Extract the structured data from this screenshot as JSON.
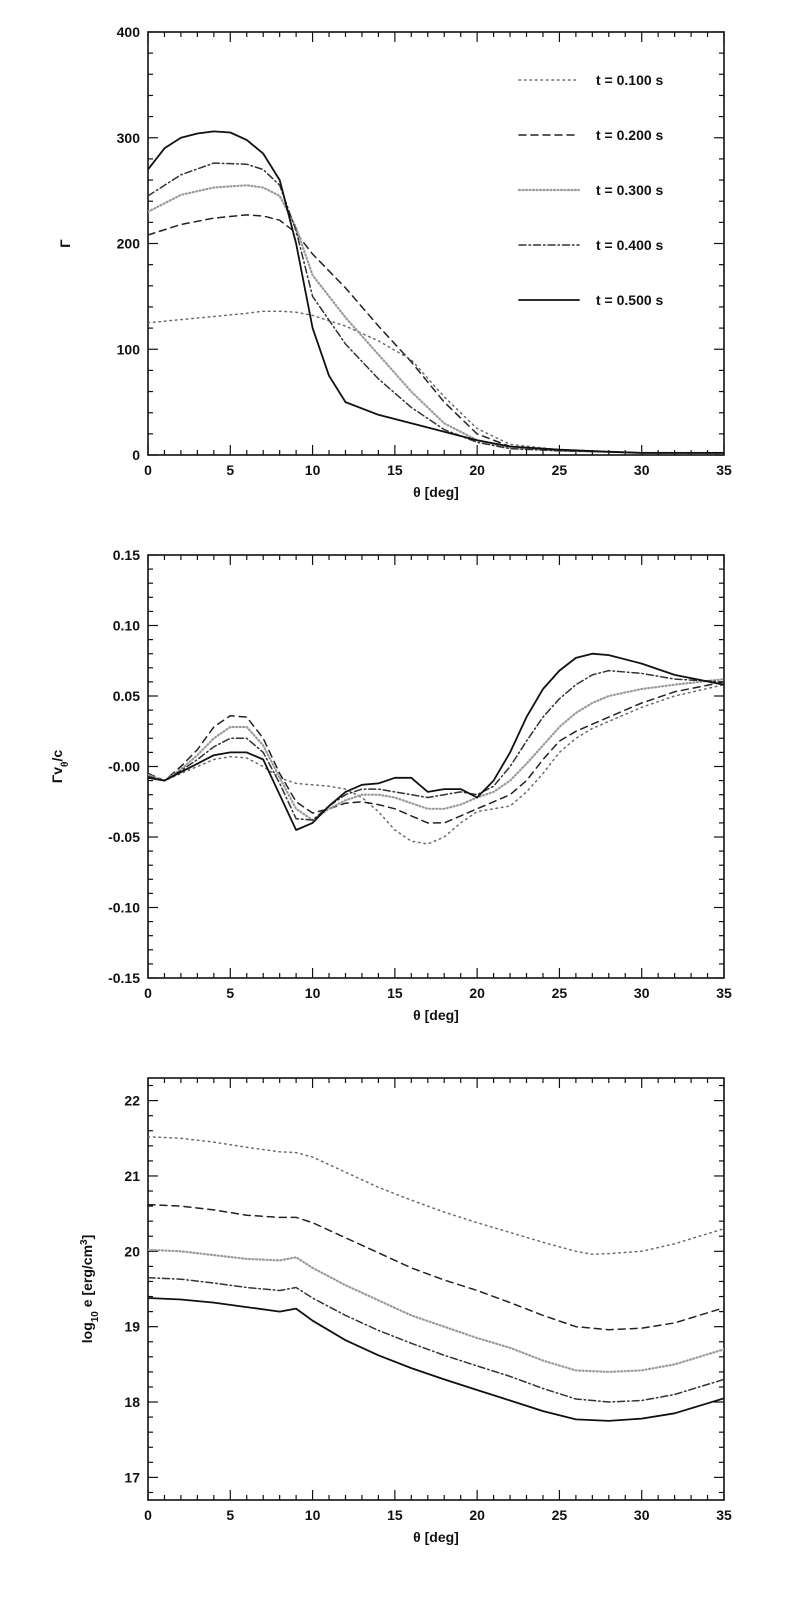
{
  "chart_data": [
    {
      "type": "line",
      "ylabel": "Γ",
      "xlabel": "θ [deg]",
      "xlim": [
        0,
        35
      ],
      "ylim": [
        0,
        400
      ],
      "xticks": [
        0,
        5,
        10,
        15,
        20,
        25,
        30,
        35
      ],
      "yticks": [
        0,
        100,
        200,
        300,
        400
      ],
      "legend_placement": "top-right",
      "series": [
        {
          "name": "t = 0.100 s",
          "x": [
            0,
            2,
            4,
            6,
            7,
            8,
            9,
            10,
            12,
            14,
            16,
            18,
            20,
            22,
            25,
            28,
            30,
            35
          ],
          "y": [
            125,
            128,
            131,
            134,
            136,
            136,
            135,
            132,
            122,
            108,
            90,
            55,
            25,
            10,
            5,
            3,
            2,
            2
          ]
        },
        {
          "name": "t = 0.200 s",
          "x": [
            0,
            2,
            4,
            6,
            7,
            8,
            9,
            10,
            12,
            14,
            16,
            18,
            20,
            22,
            25,
            28,
            30,
            35
          ],
          "y": [
            208,
            218,
            224,
            227,
            226,
            222,
            210,
            190,
            158,
            122,
            88,
            50,
            20,
            8,
            4,
            3,
            2,
            2
          ]
        },
        {
          "name": "t = 0.300 s",
          "x": [
            0,
            2,
            4,
            6,
            7,
            8,
            9,
            10,
            12,
            14,
            16,
            18,
            20,
            22,
            25,
            28,
            30,
            35
          ],
          "y": [
            230,
            246,
            253,
            255,
            253,
            245,
            215,
            170,
            130,
            95,
            60,
            30,
            14,
            7,
            4,
            3,
            2,
            2
          ]
        },
        {
          "name": "t = 0.400 s",
          "x": [
            0,
            2,
            4,
            6,
            7,
            8,
            9,
            10,
            12,
            14,
            16,
            18,
            20,
            22,
            25,
            28,
            30,
            35
          ],
          "y": [
            245,
            265,
            276,
            275,
            270,
            255,
            212,
            150,
            105,
            72,
            45,
            24,
            12,
            6,
            4,
            3,
            2,
            2
          ]
        },
        {
          "name": "t = 0.500 s",
          "x": [
            0,
            1,
            2,
            3,
            4,
            5,
            6,
            7,
            8,
            9,
            10,
            11,
            12,
            14,
            16,
            18,
            20,
            22,
            25,
            28,
            30,
            35
          ],
          "y": [
            270,
            290,
            300,
            304,
            306,
            305,
            298,
            285,
            260,
            200,
            120,
            75,
            50,
            38,
            30,
            22,
            14,
            8,
            5,
            3,
            2,
            2
          ]
        }
      ]
    },
    {
      "type": "line",
      "ylabel": "Γv",
      "ylabel_sub": "θ",
      "ylabel_tail": "/c",
      "xlabel": "θ [deg]",
      "xlim": [
        0,
        35
      ],
      "ylim": [
        -0.15,
        0.15
      ],
      "xticks": [
        0,
        5,
        10,
        15,
        20,
        25,
        30,
        35
      ],
      "yticks": [
        -0.15,
        -0.1,
        -0.05,
        0.0,
        0.05,
        0.1,
        0.15
      ],
      "ytick_labels": [
        "-0.15",
        "-0.10",
        "-0.05",
        "-0.00",
        "0.05",
        "0.10",
        "0.15"
      ],
      "series": [
        {
          "name": "t = 0.100 s",
          "x": [
            0,
            1,
            2,
            3,
            4,
            5,
            6,
            7,
            8,
            9,
            10,
            11,
            12,
            13,
            14,
            15,
            16,
            17,
            18,
            19,
            20,
            21,
            22,
            23,
            24,
            25,
            26,
            27,
            28,
            30,
            32,
            35
          ],
          "y": [
            -0.005,
            -0.01,
            -0.005,
            0.0,
            0.005,
            0.007,
            0.006,
            0.0,
            -0.008,
            -0.012,
            -0.013,
            -0.014,
            -0.016,
            -0.022,
            -0.032,
            -0.045,
            -0.053,
            -0.055,
            -0.05,
            -0.04,
            -0.032,
            -0.03,
            -0.028,
            -0.018,
            -0.005,
            0.01,
            0.02,
            0.027,
            0.032,
            0.042,
            0.05,
            0.058
          ]
        },
        {
          "name": "t = 0.200 s",
          "x": [
            0,
            1,
            2,
            3,
            4,
            5,
            6,
            7,
            8,
            9,
            10,
            11,
            12,
            13,
            14,
            15,
            16,
            17,
            18,
            19,
            20,
            21,
            22,
            23,
            24,
            25,
            26,
            27,
            28,
            30,
            32,
            35
          ],
          "y": [
            -0.005,
            -0.01,
            0.0,
            0.012,
            0.028,
            0.036,
            0.035,
            0.02,
            -0.005,
            -0.025,
            -0.033,
            -0.03,
            -0.026,
            -0.025,
            -0.027,
            -0.03,
            -0.035,
            -0.04,
            -0.04,
            -0.035,
            -0.03,
            -0.025,
            -0.02,
            -0.01,
            0.005,
            0.018,
            0.025,
            0.03,
            0.035,
            0.045,
            0.053,
            0.06
          ]
        },
        {
          "name": "t = 0.300 s",
          "x": [
            0,
            1,
            2,
            3,
            4,
            5,
            6,
            7,
            8,
            9,
            10,
            11,
            12,
            13,
            14,
            15,
            16,
            17,
            18,
            19,
            20,
            21,
            22,
            23,
            24,
            25,
            26,
            27,
            28,
            30,
            32,
            35
          ],
          "y": [
            -0.006,
            -0.01,
            -0.002,
            0.008,
            0.02,
            0.028,
            0.028,
            0.015,
            -0.008,
            -0.03,
            -0.038,
            -0.03,
            -0.024,
            -0.02,
            -0.02,
            -0.022,
            -0.026,
            -0.03,
            -0.03,
            -0.027,
            -0.022,
            -0.018,
            -0.01,
            0.002,
            0.015,
            0.028,
            0.038,
            0.045,
            0.05,
            0.055,
            0.058,
            0.062
          ]
        },
        {
          "name": "t = 0.400 s",
          "x": [
            0,
            1,
            2,
            3,
            4,
            5,
            6,
            7,
            8,
            9,
            10,
            11,
            12,
            13,
            14,
            15,
            16,
            17,
            18,
            19,
            20,
            21,
            22,
            23,
            24,
            25,
            26,
            27,
            28,
            30,
            32,
            35
          ],
          "y": [
            -0.007,
            -0.01,
            -0.003,
            0.005,
            0.014,
            0.02,
            0.02,
            0.01,
            -0.012,
            -0.037,
            -0.038,
            -0.028,
            -0.02,
            -0.016,
            -0.016,
            -0.018,
            -0.02,
            -0.022,
            -0.02,
            -0.018,
            -0.02,
            -0.014,
            0.0,
            0.018,
            0.035,
            0.048,
            0.058,
            0.065,
            0.068,
            0.066,
            0.062,
            0.06
          ]
        },
        {
          "name": "t = 0.500 s",
          "x": [
            0,
            1,
            2,
            3,
            4,
            5,
            6,
            7,
            8,
            9,
            10,
            11,
            12,
            13,
            14,
            15,
            16,
            17,
            18,
            19,
            20,
            21,
            22,
            23,
            24,
            25,
            26,
            27,
            28,
            30,
            32,
            35
          ],
          "y": [
            -0.008,
            -0.01,
            -0.004,
            0.002,
            0.008,
            0.01,
            0.01,
            0.005,
            -0.02,
            -0.045,
            -0.04,
            -0.028,
            -0.018,
            -0.013,
            -0.012,
            -0.008,
            -0.008,
            -0.018,
            -0.016,
            -0.016,
            -0.022,
            -0.01,
            0.01,
            0.035,
            0.055,
            0.068,
            0.077,
            0.08,
            0.079,
            0.073,
            0.065,
            0.058
          ]
        }
      ]
    },
    {
      "type": "line",
      "ylabel": "log",
      "ylabel_sub": "10",
      "ylabel_tail": " e [erg/cm",
      "ylabel_sup": "3",
      "ylabel_end": "]",
      "xlabel": "θ [deg]",
      "xlim": [
        0,
        35
      ],
      "ylim": [
        16.7,
        22.3
      ],
      "xticks": [
        0,
        5,
        10,
        15,
        20,
        25,
        30,
        35
      ],
      "yticks": [
        17,
        18,
        19,
        20,
        21,
        22
      ],
      "series": [
        {
          "name": "t = 0.100 s",
          "x": [
            0,
            2,
            4,
            6,
            8,
            9,
            10,
            12,
            14,
            16,
            18,
            20,
            22,
            24,
            26,
            27,
            28,
            30,
            32,
            35
          ],
          "y": [
            21.52,
            21.5,
            21.45,
            21.38,
            21.32,
            21.31,
            21.25,
            21.05,
            20.85,
            20.68,
            20.52,
            20.38,
            20.25,
            20.12,
            20.0,
            19.96,
            19.97,
            20.0,
            20.1,
            20.3
          ]
        },
        {
          "name": "t = 0.200 s",
          "x": [
            0,
            2,
            4,
            6,
            8,
            9,
            10,
            12,
            14,
            16,
            18,
            20,
            22,
            24,
            26,
            28,
            30,
            32,
            35
          ],
          "y": [
            20.62,
            20.6,
            20.55,
            20.48,
            20.45,
            20.45,
            20.38,
            20.18,
            19.98,
            19.78,
            19.62,
            19.48,
            19.32,
            19.15,
            19.0,
            18.96,
            18.98,
            19.05,
            19.25
          ]
        },
        {
          "name": "t = 0.300 s",
          "x": [
            0,
            2,
            4,
            6,
            8,
            9,
            10,
            12,
            14,
            16,
            18,
            20,
            22,
            24,
            26,
            28,
            30,
            32,
            35
          ],
          "y": [
            20.02,
            20.0,
            19.95,
            19.9,
            19.88,
            19.92,
            19.78,
            19.55,
            19.35,
            19.15,
            19.0,
            18.85,
            18.72,
            18.55,
            18.42,
            18.4,
            18.42,
            18.5,
            18.7
          ]
        },
        {
          "name": "t = 0.400 s",
          "x": [
            0,
            2,
            4,
            6,
            8,
            9,
            10,
            12,
            14,
            16,
            18,
            20,
            22,
            24,
            26,
            28,
            30,
            32,
            35
          ],
          "y": [
            19.65,
            19.63,
            19.58,
            19.52,
            19.48,
            19.52,
            19.38,
            19.15,
            18.95,
            18.78,
            18.62,
            18.48,
            18.34,
            18.18,
            18.04,
            18.0,
            18.02,
            18.1,
            18.3
          ]
        },
        {
          "name": "t = 0.500 s",
          "x": [
            0,
            2,
            4,
            6,
            8,
            9,
            10,
            12,
            14,
            16,
            18,
            20,
            22,
            24,
            26,
            28,
            30,
            32,
            35
          ],
          "y": [
            19.38,
            19.36,
            19.32,
            19.26,
            19.2,
            19.24,
            19.08,
            18.82,
            18.62,
            18.45,
            18.3,
            18.16,
            18.02,
            17.88,
            17.77,
            17.75,
            17.78,
            17.85,
            18.05
          ]
        }
      ]
    }
  ]
}
